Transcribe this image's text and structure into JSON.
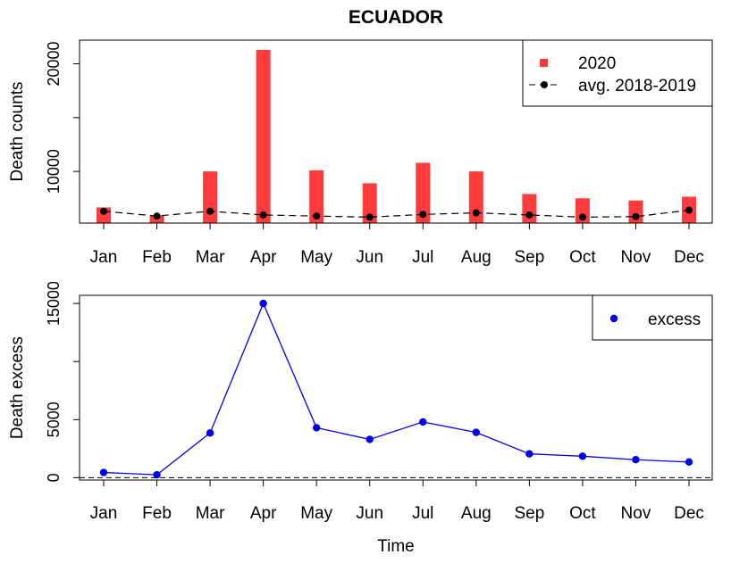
{
  "title": "ECUADOR",
  "chart_data": [
    {
      "type": "bar",
      "title": "ECUADOR",
      "xlabel": "",
      "ylabel": "Death counts",
      "categories": [
        "Jan",
        "Feb",
        "Mar",
        "Apr",
        "May",
        "Jun",
        "Jul",
        "Aug",
        "Sep",
        "Oct",
        "Nov",
        "Dec"
      ],
      "ylim": [
        5200,
        22200
      ],
      "yticks": [
        10000,
        20000
      ],
      "ytick_labels": [
        "10000",
        "20000"
      ],
      "grid": false,
      "legend_position": "top-right",
      "series": [
        {
          "name": "2020",
          "kind": "bar",
          "color": "#ff3b3b",
          "values": [
            6650,
            5900,
            10000,
            21300,
            10100,
            8900,
            10800,
            10000,
            7900,
            7500,
            7300,
            7650
          ]
        },
        {
          "name": "avg. 2018-2019",
          "kind": "line-dashed-points",
          "color": "#000000",
          "values": [
            6300,
            5850,
            6300,
            5950,
            5850,
            5750,
            6000,
            6150,
            5950,
            5750,
            5800,
            6400
          ]
        }
      ]
    },
    {
      "type": "line",
      "title": "",
      "xlabel": "Time",
      "ylabel": "Death excess",
      "categories": [
        "Jan",
        "Feb",
        "Mar",
        "Apr",
        "May",
        "Jun",
        "Jul",
        "Aug",
        "Sep",
        "Oct",
        "Nov",
        "Dec"
      ],
      "ylim": [
        -200,
        15700
      ],
      "yticks": [
        0,
        5000,
        15000
      ],
      "ytick_labels": [
        "0",
        "5000",
        "15000"
      ],
      "reference_line": 0,
      "grid": false,
      "legend_position": "top-right",
      "series": [
        {
          "name": "excess",
          "color": "#0000ee",
          "values": [
            450,
            250,
            3850,
            15000,
            4300,
            3300,
            4800,
            3900,
            2050,
            1850,
            1550,
            1350
          ]
        }
      ]
    }
  ]
}
